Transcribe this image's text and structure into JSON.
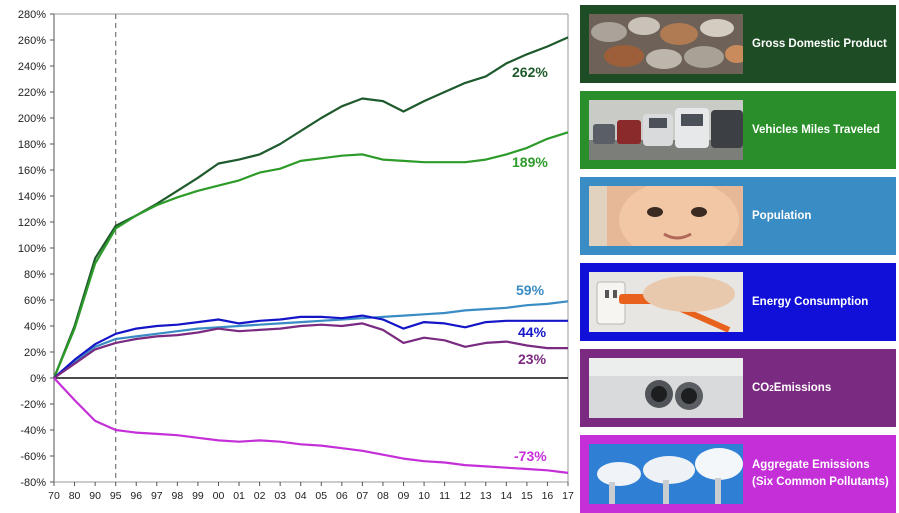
{
  "chart_data": {
    "type": "line",
    "title": "",
    "xlabel": "",
    "ylabel": "",
    "ylim": [
      -80,
      280
    ],
    "yticks": [
      -80,
      -60,
      -40,
      -20,
      0,
      20,
      40,
      60,
      80,
      100,
      120,
      140,
      160,
      180,
      200,
      220,
      240,
      260,
      280
    ],
    "ytick_labels": [
      "-80%",
      "-60%",
      "-40%",
      "-20%",
      "0%",
      "20%",
      "40%",
      "60%",
      "80%",
      "100%",
      "120%",
      "140%",
      "160%",
      "180%",
      "200%",
      "220%",
      "240%",
      "260%",
      "280%"
    ],
    "categories": [
      "70",
      "80",
      "90",
      "95",
      "96",
      "97",
      "98",
      "99",
      "00",
      "01",
      "02",
      "03",
      "04",
      "05",
      "06",
      "07",
      "08",
      "09",
      "10",
      "11",
      "12",
      "13",
      "14",
      "15",
      "16",
      "17"
    ],
    "reference_line_at": "95",
    "grid": false,
    "legend_placement": "right",
    "series": [
      {
        "name": "Gross Domestic Product",
        "color": "#1e5a2c",
        "end_label": "262%",
        "values": [
          0,
          40,
          92,
          117,
          125,
          134,
          144,
          154,
          165,
          168,
          172,
          180,
          190,
          200,
          209,
          215,
          213,
          205,
          213,
          220,
          227,
          232,
          242,
          249,
          255,
          262
        ]
      },
      {
        "name": "Vehicles Miles Traveled",
        "color": "#2d9b2a",
        "end_label": "189%",
        "values": [
          0,
          38,
          88,
          115,
          125,
          133,
          139,
          144,
          148,
          152,
          158,
          161,
          167,
          169,
          171,
          172,
          168,
          167,
          166,
          166,
          166,
          168,
          172,
          177,
          184,
          189
        ]
      },
      {
        "name": "Population",
        "color": "#3a8cc4",
        "end_label": "59%",
        "values": [
          0,
          12,
          24,
          30,
          32,
          34,
          36,
          38,
          39,
          40,
          41,
          42,
          43,
          44,
          45,
          46,
          47,
          48,
          49,
          50,
          52,
          53,
          54,
          56,
          57,
          59
        ]
      },
      {
        "name": "Energy Consumption",
        "color": "#1515c8",
        "end_label": "44%",
        "values": [
          0,
          14,
          26,
          34,
          38,
          40,
          41,
          43,
          45,
          42,
          44,
          45,
          47,
          47,
          46,
          48,
          45,
          38,
          43,
          42,
          39,
          43,
          44,
          44,
          44,
          44
        ]
      },
      {
        "name": "CO₂ Emissions",
        "color": "#7a2a80",
        "end_label": "23%",
        "values": [
          0,
          11,
          22,
          27,
          30,
          32,
          33,
          35,
          38,
          36,
          37,
          38,
          40,
          41,
          40,
          42,
          37,
          27,
          31,
          29,
          24,
          27,
          28,
          25,
          23,
          23
        ]
      },
      {
        "name": "Aggregate Emissions (Six Common Pollutants)",
        "color": "#c42fd8",
        "end_label": "-73%",
        "values": [
          0,
          -17,
          -33,
          -40,
          -42,
          -43,
          -44,
          -46,
          -48,
          -49,
          -48,
          -49,
          -51,
          -52,
          -54,
          -56,
          -59,
          -62,
          -64,
          -65,
          -67,
          -68,
          -69,
          -70,
          -71,
          -73
        ]
      }
    ]
  },
  "legend": {
    "items": [
      {
        "label": "Gross Domestic Product",
        "bg": "#1e4d25",
        "thumb": "coins-photo"
      },
      {
        "label": "Vehicles Miles Traveled",
        "bg": "#2a8f2a",
        "thumb": "traffic-photo"
      },
      {
        "label": "Population",
        "bg": "#3a8cc4",
        "thumb": "baby-photo"
      },
      {
        "label": "Energy Consumption",
        "bg": "#1010d8",
        "thumb": "power-plug-photo"
      },
      {
        "label_main": "CO",
        "label_sub": "2",
        "label_rest": " Emissions",
        "bg": "#7a2a80",
        "thumb": "exhaust-pipe-photo"
      },
      {
        "label_line1": "Aggregate Emissions",
        "label_line2": "(Six Common Pollutants)",
        "bg": "#c42fd8",
        "thumb": "smokestack-photo"
      }
    ]
  }
}
